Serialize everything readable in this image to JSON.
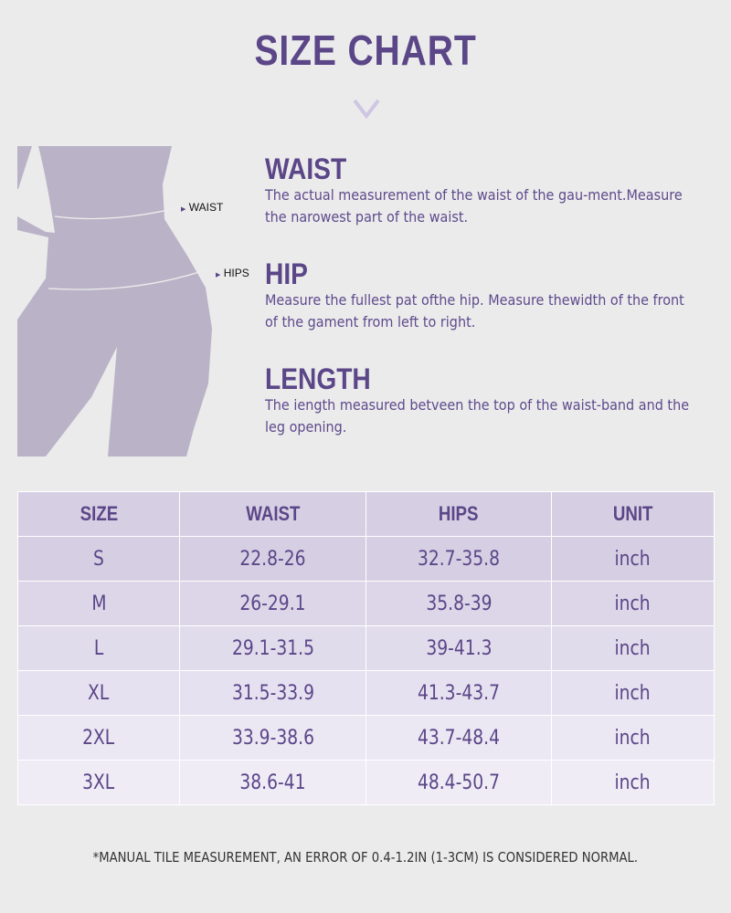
{
  "title": "SIZE CHART",
  "figure": {
    "waist_label": "WAIST",
    "hips_label": "HIPS",
    "color": "#bab3c7"
  },
  "sections": [
    {
      "heading": "WAIST",
      "text": "The actual measurement of the waist of the gau-ment.Measure the narowest part of the waist."
    },
    {
      "heading": "HIP",
      "text": "Measure the fullest pat ofthe hip. Measure thewidth of the front of the gament from left to right."
    },
    {
      "heading": "LENGTH",
      "text": "The iength measured betveen the top of the waist-band and the leg opening."
    }
  ],
  "table": {
    "headers": [
      "SIZE",
      "WAIST",
      "HIPS",
      "UNIT"
    ],
    "rows": [
      [
        "S",
        "22.8-26",
        "32.7-35.8",
        "inch"
      ],
      [
        "M",
        "26-29.1",
        "35.8-39",
        "inch"
      ],
      [
        "L",
        "29.1-31.5",
        "39-41.3",
        "inch"
      ],
      [
        "XL",
        "31.5-33.9",
        "41.3-43.7",
        "inch"
      ],
      [
        "2XL",
        "33.9-38.6",
        "43.7-48.4",
        "inch"
      ],
      [
        "3XL",
        "38.6-41",
        "48.4-50.7",
        "inch"
      ]
    ],
    "row_colors": [
      "#d6cfe3",
      "#dcd6e8",
      "#e1dcec",
      "#e6e1f0",
      "#ebe7f3",
      "#efecf6"
    ]
  },
  "note": "*MANUAL TILE MEASUREMENT, AN ERROR OF 0.4-1.2IN (1-3CM) IS CONSIDERED NORMAL."
}
